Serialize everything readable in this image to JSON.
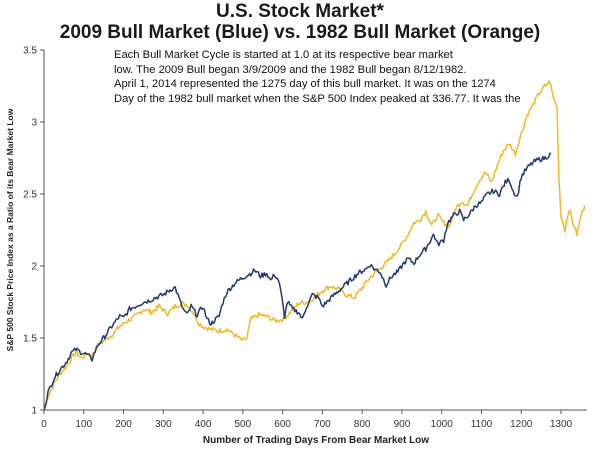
{
  "chart_data": {
    "type": "line",
    "title": "U.S. Stock Market*",
    "subtitle": "2009 Bull Market (Blue) vs. 1982 Bull Market (Orange)",
    "annotation": [
      "Each Bull Market Cycle is started at 1.0 at its respective bear market",
      "low.  The 2009 Bull began 3/9/2009 and the 1982 Bull began 8/12/1982.",
      "April 1, 2014 represented the 1275 day of this bull market.  It  was on the 1274",
      "Day of the 1982 bull market when the S&P 500 Index peaked at 336.77.  It was the"
    ],
    "xlabel": "Number of Trading Days From Bear Market Low",
    "ylabel": "S&P 500 Stock Price Index as a Ratio of its Bear Market Low",
    "xlim": [
      0,
      1365
    ],
    "ylim": [
      1,
      3.5
    ],
    "xticks": [
      0,
      100,
      200,
      300,
      400,
      500,
      600,
      700,
      800,
      900,
      1000,
      1100,
      1200,
      1300
    ],
    "yticks": [
      1,
      1.5,
      2,
      2.5,
      3,
      3.5
    ],
    "ytick_labels": [
      "1",
      "1.5",
      "2",
      "2.5",
      "3",
      "3.5"
    ],
    "grid": false,
    "legend": "none",
    "series": [
      {
        "name": "2009 Bull Market",
        "color": "#1f3a6b",
        "x": [
          0,
          10,
          25,
          40,
          55,
          70,
          80,
          95,
          110,
          120,
          135,
          150,
          170,
          190,
          200,
          215,
          230,
          250,
          265,
          280,
          300,
          320,
          330,
          340,
          350,
          360,
          370,
          385,
          400,
          410,
          420,
          440,
          450,
          460,
          480,
          500,
          520,
          530,
          545,
          560,
          570,
          580,
          590,
          598,
          605,
          612,
          625,
          640,
          650,
          660,
          675,
          690,
          700,
          715,
          730,
          750,
          770,
          790,
          810,
          820,
          830,
          845,
          860,
          875,
          890,
          905,
          915,
          930,
          945,
          960,
          980,
          990,
          1005,
          1015,
          1030,
          1045,
          1055,
          1070,
          1085,
          1100,
          1115,
          1130,
          1145,
          1160,
          1170,
          1180,
          1190,
          1200,
          1215,
          1230,
          1245,
          1260,
          1275
        ],
        "values": [
          1.0,
          1.12,
          1.22,
          1.28,
          1.33,
          1.4,
          1.42,
          1.4,
          1.38,
          1.35,
          1.45,
          1.5,
          1.58,
          1.65,
          1.64,
          1.7,
          1.72,
          1.75,
          1.76,
          1.78,
          1.8,
          1.84,
          1.85,
          1.77,
          1.7,
          1.66,
          1.72,
          1.66,
          1.72,
          1.63,
          1.6,
          1.65,
          1.75,
          1.82,
          1.88,
          1.92,
          1.95,
          1.97,
          1.93,
          1.95,
          1.9,
          1.94,
          1.9,
          1.78,
          1.65,
          1.75,
          1.7,
          1.68,
          1.63,
          1.72,
          1.8,
          1.78,
          1.72,
          1.76,
          1.8,
          1.85,
          1.9,
          1.95,
          1.98,
          2.01,
          1.98,
          1.96,
          1.87,
          1.93,
          1.96,
          2.02,
          2.05,
          2.02,
          2.08,
          2.12,
          2.22,
          2.15,
          2.18,
          2.3,
          2.35,
          2.38,
          2.32,
          2.36,
          2.42,
          2.44,
          2.5,
          2.52,
          2.5,
          2.58,
          2.6,
          2.52,
          2.48,
          2.62,
          2.68,
          2.72,
          2.74,
          2.75,
          2.78
        ]
      },
      {
        "name": "1982 Bull Market",
        "color": "#f0b92a",
        "x": [
          0,
          10,
          25,
          40,
          55,
          70,
          80,
          95,
          110,
          120,
          135,
          150,
          170,
          190,
          210,
          230,
          250,
          270,
          290,
          310,
          330,
          345,
          360,
          375,
          390,
          400,
          420,
          440,
          460,
          480,
          500,
          510,
          520,
          540,
          560,
          580,
          600,
          620,
          640,
          660,
          680,
          700,
          720,
          740,
          760,
          780,
          800,
          820,
          840,
          860,
          880,
          900,
          915,
          930,
          945,
          960,
          975,
          990,
          1005,
          1020,
          1035,
          1050,
          1065,
          1080,
          1095,
          1110,
          1125,
          1140,
          1155,
          1170,
          1185,
          1200,
          1215,
          1230,
          1245,
          1260,
          1272,
          1280,
          1290,
          1295,
          1300,
          1310,
          1320,
          1330,
          1340,
          1350,
          1360
        ],
        "values": [
          1.0,
          1.1,
          1.18,
          1.25,
          1.3,
          1.36,
          1.4,
          1.36,
          1.4,
          1.37,
          1.45,
          1.48,
          1.52,
          1.58,
          1.62,
          1.65,
          1.7,
          1.68,
          1.72,
          1.67,
          1.72,
          1.74,
          1.73,
          1.68,
          1.6,
          1.58,
          1.56,
          1.55,
          1.56,
          1.52,
          1.48,
          1.5,
          1.63,
          1.66,
          1.65,
          1.62,
          1.63,
          1.68,
          1.74,
          1.75,
          1.78,
          1.83,
          1.86,
          1.84,
          1.8,
          1.78,
          1.85,
          1.92,
          1.97,
          2.02,
          2.08,
          2.15,
          2.22,
          2.3,
          2.32,
          2.38,
          2.28,
          2.35,
          2.3,
          2.28,
          2.4,
          2.45,
          2.42,
          2.52,
          2.6,
          2.65,
          2.58,
          2.7,
          2.8,
          2.85,
          2.78,
          2.92,
          3.05,
          3.12,
          3.2,
          3.25,
          3.28,
          3.18,
          3.1,
          2.6,
          2.35,
          2.25,
          2.4,
          2.3,
          2.22,
          2.35,
          2.42
        ]
      }
    ]
  }
}
